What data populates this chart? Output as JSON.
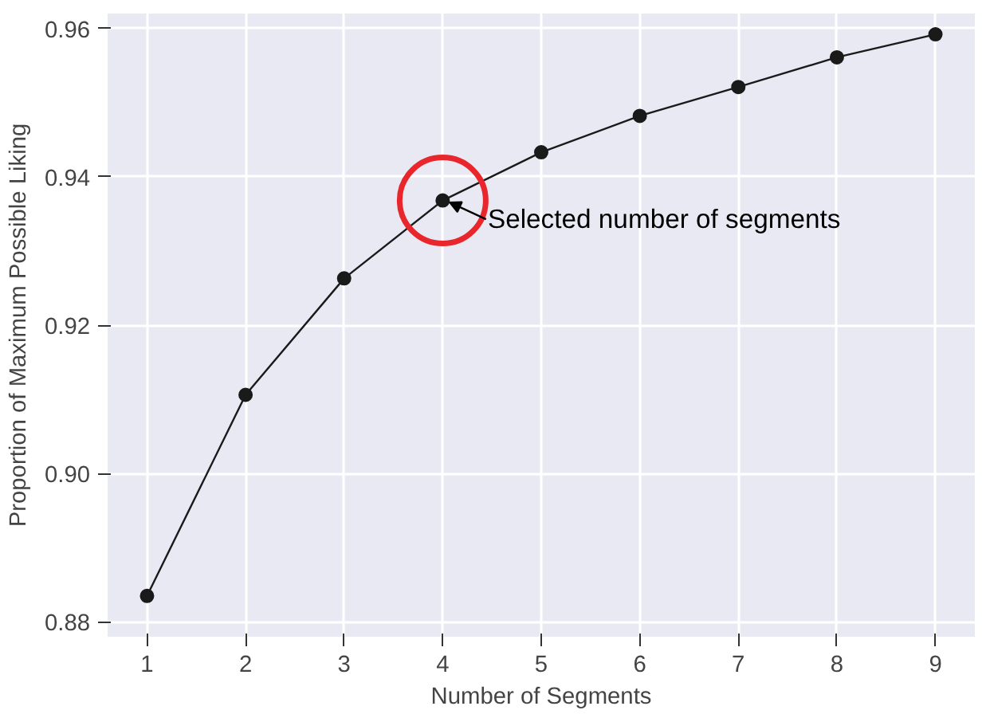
{
  "chart_data": {
    "type": "line",
    "xlabel": "Number of Segments",
    "ylabel": "Proportion of Maximum Possible Liking",
    "x": [
      1,
      2,
      3,
      4,
      5,
      6,
      7,
      8,
      9
    ],
    "series": [
      {
        "color": "#1a1a1a",
        "values": [
          0.8835,
          0.9106,
          0.9263,
          0.9368,
          0.9433,
          0.9482,
          0.9521,
          0.9561,
          0.9592
        ]
      }
    ],
    "xlim": [
      0.6,
      9.4
    ],
    "ylim": [
      0.878,
      0.962
    ],
    "xticks": [
      1,
      2,
      3,
      4,
      5,
      6,
      7,
      8,
      9
    ],
    "yticks": [
      {
        "value": 0.88,
        "label": "0.88"
      },
      {
        "value": 0.9,
        "label": "0.90"
      },
      {
        "value": 0.92,
        "label": "0.92"
      },
      {
        "value": 0.94,
        "label": "0.94"
      },
      {
        "value": 0.96,
        "label": "0.96"
      }
    ],
    "grid": true,
    "marker": "circle",
    "line_style": "solid",
    "annotations": [
      {
        "text": "Selected number of segments",
        "x": 4,
        "y": 0.9368
      }
    ]
  }
}
